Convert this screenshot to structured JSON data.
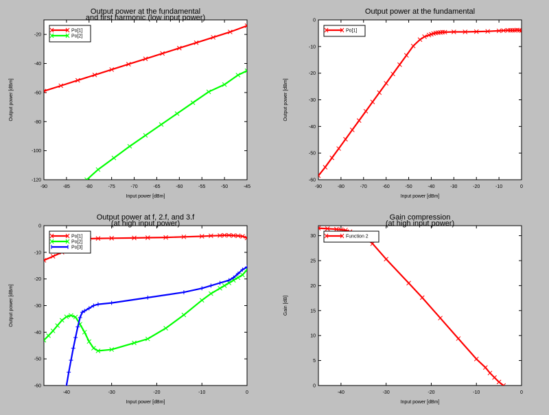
{
  "chart_data": [
    {
      "type": "line",
      "title": "Output power at the fundamental",
      "subtitle": "and first harmonic (low input power)",
      "xlabel": "Input power [dBm]",
      "ylabel": "Output power [dBm]",
      "xlim": [
        -90,
        -45
      ],
      "ylim": [
        -120,
        -10
      ],
      "xticks": [
        -90,
        -85,
        -80,
        -75,
        -70,
        -65,
        -60,
        -55,
        -50,
        -45
      ],
      "yticks": [
        -120,
        -100,
        -80,
        -60,
        -40,
        -20
      ],
      "tick_labels_x": [
        "-90",
        "-85",
        "-80",
        "-75",
        "-70",
        "-65",
        "-60",
        "-55",
        "-50",
        "-45"
      ],
      "tick_labels_y": [
        "-120",
        "-100",
        "-80",
        "-60",
        "-40",
        "-20"
      ],
      "legend": "top-left",
      "series": [
        {
          "name": "Po[1]",
          "color": "#ff0000",
          "marker": "x",
          "x": [
            -90,
            -86.25,
            -82.5,
            -78.75,
            -75,
            -71.25,
            -67.5,
            -63.75,
            -60,
            -56.25,
            -52.5,
            -48.75,
            -45
          ],
          "y": [
            -59,
            -55.3,
            -51.6,
            -47.9,
            -44.2,
            -40.5,
            -36.8,
            -33.1,
            -29.4,
            -25.7,
            -22,
            -18.3,
            -14
          ]
        },
        {
          "name": "Po[2]",
          "color": "#00ff00",
          "marker": "x",
          "x": [
            -80.5,
            -78,
            -74.5,
            -71,
            -67.5,
            -64,
            -60.5,
            -57,
            -53.5,
            -50,
            -47,
            -45
          ],
          "y": [
            -120,
            -113,
            -105,
            -97,
            -89.5,
            -82,
            -74.5,
            -67,
            -59.5,
            -54.5,
            -48,
            -45
          ]
        }
      ]
    },
    {
      "type": "line",
      "title": "Output power at the fundamental",
      "subtitle": "",
      "xlabel": "Input power [dBm]",
      "ylabel": "Output power [dBm]",
      "xlim": [
        -90,
        0
      ],
      "ylim": [
        -60,
        0
      ],
      "xticks": [
        -90,
        -80,
        -70,
        -60,
        -50,
        -40,
        -30,
        -20,
        -10,
        0
      ],
      "yticks": [
        -60,
        -50,
        -40,
        -30,
        -20,
        -10,
        0
      ],
      "tick_labels_x": [
        "-90",
        "-80",
        "-70",
        "-60",
        "-50",
        "-40",
        "-30",
        "-20",
        "-10",
        "0"
      ],
      "tick_labels_y": [
        "-60",
        "-50",
        "-40",
        "-30",
        "-20",
        "-10",
        "0"
      ],
      "legend": "top-left",
      "series": [
        {
          "name": "Po[1]",
          "color": "#ff0000",
          "marker": "x",
          "x": [
            -90,
            -87,
            -84,
            -81,
            -78,
            -75,
            -72,
            -69,
            -66,
            -63,
            -60,
            -57,
            -54,
            -51,
            -48,
            -45,
            -43,
            -41,
            -40,
            -39,
            -38,
            -37,
            -36,
            -35,
            -34,
            -30,
            -25,
            -20,
            -15,
            -10,
            -8,
            -6,
            -5,
            -4,
            -3,
            -2,
            -1,
            0
          ],
          "y": [
            -58.5,
            -55.3,
            -51.8,
            -48.3,
            -44.8,
            -41.3,
            -37.8,
            -34.3,
            -30.8,
            -27.3,
            -23.8,
            -20.3,
            -16.8,
            -13.3,
            -9.8,
            -7.4,
            -6.3,
            -5.7,
            -5.4,
            -5.1,
            -4.9,
            -4.8,
            -4.7,
            -4.6,
            -4.6,
            -4.5,
            -4.5,
            -4.4,
            -4.3,
            -4.1,
            -4,
            -3.9,
            -3.9,
            -3.9,
            -3.9,
            -3.8,
            -3.9,
            -4
          ]
        }
      ]
    },
    {
      "type": "line",
      "title": "Output power at f, 2.f, and 3.f",
      "subtitle": "(at high input power)",
      "xlabel": "Input power [dBm]",
      "ylabel": "Output power [dBm]",
      "xlim": [
        -45,
        0
      ],
      "ylim": [
        -60,
        0
      ],
      "xticks": [
        -40,
        -30,
        -20,
        -10,
        0
      ],
      "yticks": [
        -60,
        -50,
        -40,
        -30,
        -20,
        -10,
        0
      ],
      "tick_labels_x": [
        "-40",
        "-30",
        "-20",
        "-10",
        "0"
      ],
      "tick_labels_y": [
        "-60",
        "-50",
        "-40",
        "-30",
        "-20",
        "-10",
        "0"
      ],
      "legend": "top-left",
      "series": [
        {
          "name": "Po[1]",
          "color": "#ff0000",
          "marker": "x",
          "x": [
            -45,
            -43,
            -41,
            -40,
            -39,
            -38,
            -37,
            -36,
            -35,
            -33,
            -30,
            -25,
            -22,
            -18,
            -14,
            -10,
            -8,
            -6,
            -5,
            -4,
            -3,
            -2,
            -1,
            0
          ],
          "y": [
            -13,
            -11.5,
            -10,
            -8.8,
            -7.3,
            -6,
            -5.3,
            -5,
            -4.9,
            -4.8,
            -4.7,
            -4.6,
            -4.5,
            -4.4,
            -4.2,
            -4,
            -3.8,
            -3.7,
            -3.6,
            -3.6,
            -3.7,
            -3.8,
            -4,
            -4.6
          ]
        },
        {
          "name": "Po[2]",
          "color": "#00ff00",
          "marker": "x",
          "x": [
            -45,
            -44,
            -43,
            -42,
            -41,
            -40,
            -39,
            -38,
            -37,
            -36,
            -35,
            -34,
            -33,
            -30,
            -25,
            -22,
            -18,
            -14,
            -10,
            -8,
            -6,
            -5,
            -4,
            -3,
            -2,
            -1,
            0
          ],
          "y": [
            -43,
            -41.3,
            -39.5,
            -37.5,
            -35.5,
            -34.2,
            -33.7,
            -34.3,
            -37,
            -40,
            -43.5,
            -46,
            -47,
            -46.5,
            -44,
            -42.5,
            -38.5,
            -33.5,
            -28,
            -25.5,
            -23.5,
            -22.5,
            -21.5,
            -20.5,
            -19.5,
            -18.5,
            -16.5
          ]
        },
        {
          "name": "Po[3]",
          "color": "#0000ff",
          "marker": "plus",
          "x": [
            -40,
            -39.5,
            -39,
            -38.5,
            -38,
            -37.5,
            -37,
            -36.5,
            -36,
            -35,
            -34,
            -33,
            -30,
            -22,
            -14,
            -10,
            -8,
            -6,
            -4,
            -3,
            -2,
            -1,
            0
          ],
          "y": [
            -60,
            -55,
            -50.5,
            -46,
            -42,
            -38,
            -34.5,
            -32.5,
            -32,
            -31,
            -30,
            -29.5,
            -29,
            -27,
            -25,
            -23.5,
            -22.5,
            -21.5,
            -20.5,
            -19.5,
            -18,
            -16.5,
            -15.5
          ]
        }
      ]
    },
    {
      "type": "line",
      "title": "Gain compression",
      "subtitle": "(at high input power)",
      "xlabel": "Input power [dBm]",
      "ylabel": "Gain [dB]",
      "xlim": [
        -45,
        0
      ],
      "ylim": [
        0,
        32
      ],
      "xticks": [
        -40,
        -30,
        -20,
        -10,
        0
      ],
      "yticks": [
        0,
        5,
        10,
        15,
        20,
        25,
        30
      ],
      "tick_labels_x": [
        "-40",
        "-30",
        "-20",
        "-10",
        "0"
      ],
      "tick_labels_y": [
        "0",
        "5",
        "10",
        "15",
        "20",
        "25",
        "30"
      ],
      "legend": "top-left",
      "series": [
        {
          "name": "Function 2",
          "color": "#ff0000",
          "marker": "x",
          "x": [
            -45,
            -43,
            -41,
            -40,
            -39,
            -38,
            -37,
            -36,
            -35,
            -34,
            -33,
            -30,
            -25,
            -22,
            -18,
            -14,
            -10,
            -8,
            -7,
            -6,
            -5,
            -4
          ],
          "y": [
            31.5,
            31.4,
            31.3,
            31.2,
            31.1,
            30.8,
            30.5,
            30.3,
            29.6,
            29.1,
            28.4,
            25.3,
            20.5,
            17.6,
            13.5,
            9.4,
            5.3,
            3.6,
            2.5,
            1.6,
            0.7,
            0
          ]
        }
      ]
    }
  ]
}
